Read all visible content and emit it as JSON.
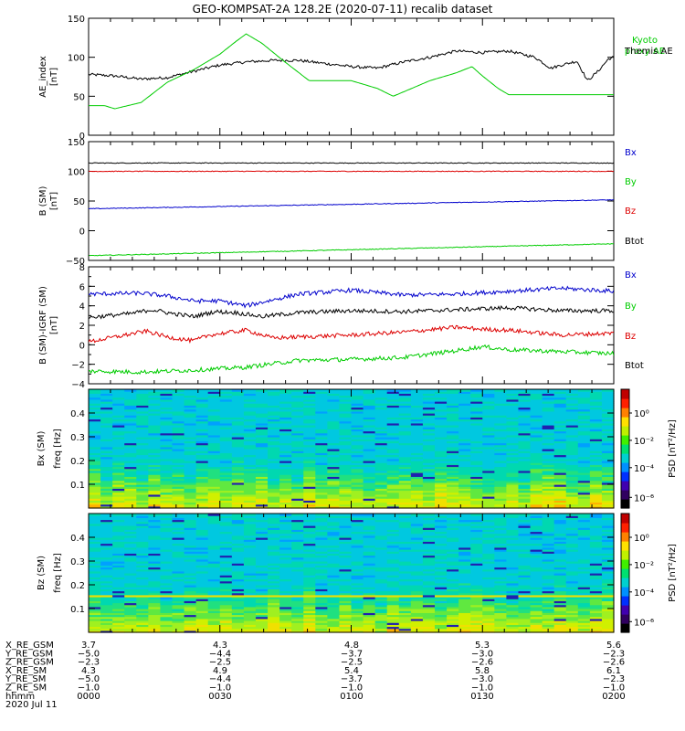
{
  "title": "GEO-KOMPSAT-2A 128.2E (2020-07-11) recalib dataset",
  "colors": {
    "blue": "#0000cc",
    "red": "#dd0000",
    "green": "#00cc00",
    "black": "#000000"
  },
  "chart_data": [
    {
      "type": "line",
      "name": "ae-index",
      "ylabel": "AE_index",
      "yunit": "[nT]",
      "ylim": [
        0,
        150
      ],
      "yticks": [
        0,
        50,
        100,
        150
      ],
      "legend": [
        "Kyoto proxy AE",
        "Themis AE"
      ],
      "series": [
        {
          "name": "Themis AE",
          "color": "#000000",
          "x": [
            0,
            0.05,
            0.1,
            0.15,
            0.2,
            0.25,
            0.3,
            0.35,
            0.4,
            0.45,
            0.5,
            0.55,
            0.6,
            0.65,
            0.7,
            0.75,
            0.8,
            0.85,
            0.88,
            0.9,
            0.93,
            0.95,
            0.97,
            0.99,
            1.0
          ],
          "y": [
            78,
            76,
            72,
            74,
            82,
            90,
            94,
            96,
            96,
            92,
            88,
            86,
            94,
            100,
            108,
            106,
            108,
            100,
            86,
            90,
            95,
            70,
            82,
            98,
            100
          ]
        },
        {
          "name": "Kyoto proxy AE",
          "color": "#00cc00",
          "x": [
            0.03,
            0.05,
            0.1,
            0.15,
            0.2,
            0.25,
            0.28,
            0.3,
            0.33,
            0.37,
            0.42,
            0.5,
            0.55,
            0.58,
            0.65,
            0.7,
            0.73,
            0.75,
            0.78,
            0.8,
            1.0
          ],
          "y": [
            38,
            34,
            42,
            68,
            84,
            104,
            120,
            130,
            118,
            96,
            70,
            70,
            60,
            50,
            70,
            80,
            88,
            76,
            60,
            52,
            52
          ]
        }
      ]
    },
    {
      "type": "line",
      "name": "b-sm",
      "ylabel": "B (SM)",
      "yunit": "[nT]",
      "ylim": [
        -50,
        150
      ],
      "yticks": [
        -50,
        0,
        50,
        100,
        150
      ],
      "legend": [
        "Bx",
        "By",
        "Bz",
        "Btot"
      ],
      "series": [
        {
          "name": "Btot",
          "color": "#000000",
          "x": [
            0,
            1
          ],
          "y": [
            114,
            114
          ]
        },
        {
          "name": "Bz",
          "color": "#dd0000",
          "x": [
            0,
            1
          ],
          "y": [
            100,
            100
          ]
        },
        {
          "name": "Bx",
          "color": "#0000cc",
          "x": [
            0,
            1
          ],
          "y": [
            37,
            52
          ]
        },
        {
          "name": "By",
          "color": "#00cc00",
          "x": [
            0,
            1
          ],
          "y": [
            -42,
            -22
          ]
        }
      ]
    },
    {
      "type": "line",
      "name": "b-minus-igrf",
      "ylabel": "B (SM)-IGRF (SM)",
      "yunit": "[nT]",
      "ylim": [
        -4,
        8
      ],
      "yticks": [
        -4,
        -2,
        0,
        2,
        4,
        6,
        8
      ],
      "legend": [
        "Bx",
        "By",
        "Bz",
        "Btot"
      ],
      "series": [
        {
          "name": "Bx",
          "color": "#0000cc",
          "x": [
            0,
            0.1,
            0.15,
            0.2,
            0.25,
            0.3,
            0.35,
            0.4,
            0.5,
            0.6,
            0.7,
            0.8,
            0.9,
            1.0
          ],
          "y": [
            5.2,
            5.3,
            5.0,
            4.5,
            4.5,
            4.0,
            4.6,
            5.2,
            5.6,
            5.1,
            5.2,
            5.5,
            5.8,
            5.5
          ]
        },
        {
          "name": "Btot",
          "color": "#000000",
          "x": [
            0,
            0.08,
            0.12,
            0.16,
            0.2,
            0.24,
            0.28,
            0.33,
            0.4,
            0.5,
            0.6,
            0.7,
            0.8,
            0.9,
            1.0
          ],
          "y": [
            2.8,
            3.2,
            3.6,
            3.2,
            2.9,
            3.4,
            3.3,
            2.9,
            3.3,
            3.5,
            3.4,
            3.6,
            3.8,
            3.5,
            3.5
          ]
        },
        {
          "name": "Bz",
          "color": "#dd0000",
          "x": [
            0,
            0.06,
            0.11,
            0.15,
            0.2,
            0.23,
            0.3,
            0.35,
            0.4,
            0.5,
            0.6,
            0.7,
            0.75,
            0.8,
            0.9,
            1.0
          ],
          "y": [
            0.3,
            0.9,
            1.4,
            0.8,
            0.4,
            1.0,
            1.5,
            0.7,
            0.8,
            1.0,
            1.3,
            1.8,
            1.6,
            1.5,
            1.0,
            1.2
          ]
        },
        {
          "name": "By",
          "color": "#00cc00",
          "x": [
            0,
            0.1,
            0.2,
            0.3,
            0.4,
            0.5,
            0.6,
            0.7,
            0.75,
            0.8,
            0.9,
            1.0
          ],
          "y": [
            -2.7,
            -2.8,
            -2.6,
            -2.3,
            -1.6,
            -1.5,
            -1.3,
            -0.6,
            -0.2,
            -0.5,
            -0.7,
            -0.9
          ]
        }
      ]
    },
    {
      "type": "heatmap",
      "name": "bx-spectrogram",
      "ylabel": "Bx (SM)",
      "yunit": "freq [Hz]",
      "ylim": [
        0,
        0.5
      ],
      "yticks": [
        "0.1",
        "0.2",
        "0.3",
        "0.4"
      ],
      "zlabel": "PSD [nT²/Hz]",
      "zticks": [
        "10⁰",
        "10⁻²",
        "10⁻⁴",
        "10⁻⁶"
      ]
    },
    {
      "type": "heatmap",
      "name": "bz-spectrogram",
      "ylabel": "Bz (SM)",
      "yunit": "freq [Hz]",
      "ylim": [
        0,
        0.5
      ],
      "yticks": [
        "0.1",
        "0.2",
        "0.3",
        "0.4"
      ],
      "zlabel": "PSD [nT²/Hz]",
      "zticks": [
        "10⁰",
        "10⁻²",
        "10⁻⁴",
        "10⁻⁶"
      ]
    }
  ],
  "ephemeris": {
    "row_labels": [
      "X_RE_GSM",
      "Y_RE_GSM",
      "Z_RE_GSM",
      "X_RE_SM",
      "Y_RE_SM",
      "Z_RE_SM",
      "hhmm"
    ],
    "columns": [
      [
        "3.7",
        "-5.0",
        "-2.3",
        "4.3",
        "-5.0",
        "-1.0",
        "0000"
      ],
      [
        "4.3",
        "-4.4",
        "-2.5",
        "4.9",
        "-4.4",
        "-1.0",
        "0030"
      ],
      [
        "4.8",
        "-3.7",
        "-2.5",
        "5.4",
        "-3.7",
        "-1.0",
        "0100"
      ],
      [
        "5.3",
        "-3.0",
        "-2.6",
        "5.8",
        "-3.0",
        "-1.0",
        "0130"
      ],
      [
        "5.6",
        "-2.3",
        "-2.6",
        "6.1",
        "-2.3",
        "-1.0",
        "0200"
      ]
    ],
    "date": "2020 Jul 11"
  }
}
